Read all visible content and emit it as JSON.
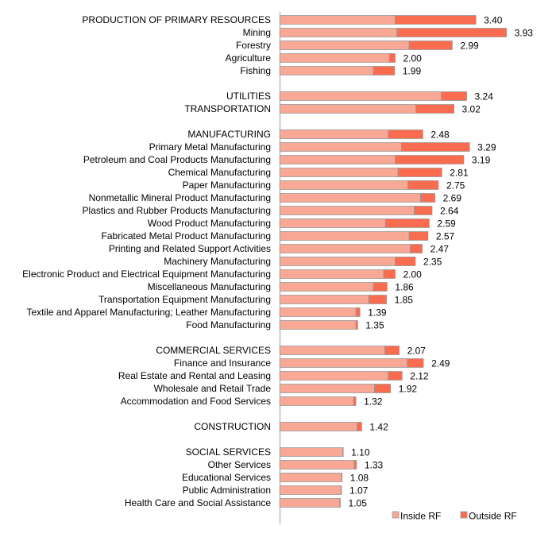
{
  "chart_data": {
    "type": "bar",
    "orientation": "horizontal",
    "stacked": true,
    "title": "",
    "xlabel": "",
    "ylabel": "",
    "xlim": [
      0,
      4
    ],
    "grid": false,
    "legend_position": "bottom-right",
    "colors": {
      "Inside RF": "#F9A896",
      "Outside RF": "#F96C50",
      "border": "#9a9a9a",
      "axis": "#bdbdbd"
    },
    "categories": [
      "PRODUCTION OF PRIMARY RESOURCES",
      "Mining",
      "Forestry",
      "Agriculture",
      "Fishing",
      "",
      "UTILITIES",
      "TRANSPORTATION",
      "",
      "MANUFACTURING",
      "Primary Metal Manufacturing",
      "Petroleum and Coal Products Manufacturing",
      "Chemical Manufacturing",
      "Paper Manufacturing",
      "Nonmetallic Mineral Product Manufacturing",
      "Plastics and Rubber Products Manufacturing",
      "Wood Product Manufacturing",
      "Fabricated Metal Product Manufacturing",
      "Printing and Related Support Activities",
      "Machinery Manufacturing",
      "Electronic Product and Electrical Equipment Manufacturing",
      "Miscellaneous Manufacturing",
      "Transportation Equipment Manufacturing",
      "Textile and Apparel Manufacturing; Leather Manufacturing",
      "Food Manufacturing",
      "",
      "COMMERCIAL SERVICES",
      "Finance and Insurance",
      "Real Estate and Rental and Leasing",
      "Wholesale and Retail Trade",
      "Accommodation and Food Services",
      "",
      "CONSTRUCTION",
      "",
      "SOCIAL SERVICES",
      "Other Services",
      "Educational Services",
      "Public Administration",
      "Health Care and Social Assistance"
    ],
    "series": [
      {
        "name": "Inside RF",
        "values": [
          2.0,
          2.03,
          2.24,
          1.9,
          1.62,
          null,
          2.8,
          2.36,
          null,
          1.88,
          2.11,
          2.0,
          2.05,
          2.22,
          2.44,
          2.33,
          1.83,
          2.24,
          2.26,
          2.0,
          1.8,
          1.62,
          1.54,
          1.32,
          1.32,
          null,
          1.82,
          2.21,
          1.88,
          1.64,
          1.28,
          null,
          1.34,
          null,
          1.09,
          1.29,
          1.07,
          1.06,
          1.04
        ]
      },
      {
        "name": "Outside RF",
        "values": [
          1.4,
          1.9,
          0.75,
          0.1,
          0.37,
          null,
          0.44,
          0.66,
          null,
          0.6,
          1.18,
          1.19,
          0.76,
          0.53,
          0.25,
          0.31,
          0.76,
          0.33,
          0.21,
          0.35,
          0.2,
          0.24,
          0.31,
          0.07,
          0.03,
          null,
          0.25,
          0.28,
          0.24,
          0.28,
          0.04,
          null,
          0.08,
          null,
          0.01,
          0.04,
          0.01,
          0.01,
          0.01
        ]
      }
    ],
    "totals": [
      "3.40",
      "3.93",
      "2.99",
      "2.00",
      "1.99",
      null,
      "3.24",
      "3.02",
      null,
      "2.48",
      "3.29",
      "3.19",
      "2.81",
      "2.75",
      "2.69",
      "2.64",
      "2.59",
      "2.57",
      "2.47",
      "2.35",
      "2.00",
      "1.86",
      "1.85",
      "1.39",
      "1.35",
      null,
      "2.07",
      "2.49",
      "2.12",
      "1.92",
      "1.32",
      null,
      "1.42",
      null,
      "1.10",
      "1.33",
      "1.08",
      "1.07",
      "1.05"
    ]
  }
}
